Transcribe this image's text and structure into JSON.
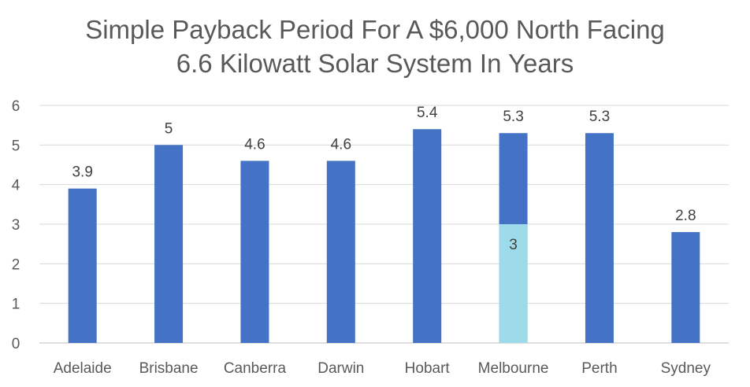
{
  "chart_data": {
    "type": "bar",
    "title_lines": [
      "Simple Payback Period For A $6,000 North Facing",
      "6.6 Kilowatt Solar System In Years"
    ],
    "categories": [
      "Adelaide",
      "Brisbane",
      "Canberra",
      "Darwin",
      "Hobart",
      "Melbourne",
      "Perth",
      "Sydney"
    ],
    "series": [
      {
        "values": [
          3.9,
          5,
          4.6,
          4.6,
          5.4,
          5.3,
          5.3,
          2.8
        ],
        "color": "#4472C4"
      }
    ],
    "overlay_bar": {
      "category": "Melbourne",
      "value": 3,
      "label": "3",
      "color": "#9DDBEA"
    },
    "data_labels": [
      "3.9",
      "5",
      "4.6",
      "4.6",
      "5.4",
      "5.3",
      "5.3",
      "2.8"
    ],
    "y_ticks": [
      0,
      1,
      2,
      3,
      4,
      5,
      6
    ],
    "ylim": [
      0,
      6
    ],
    "grid": true,
    "legend": "none"
  }
}
